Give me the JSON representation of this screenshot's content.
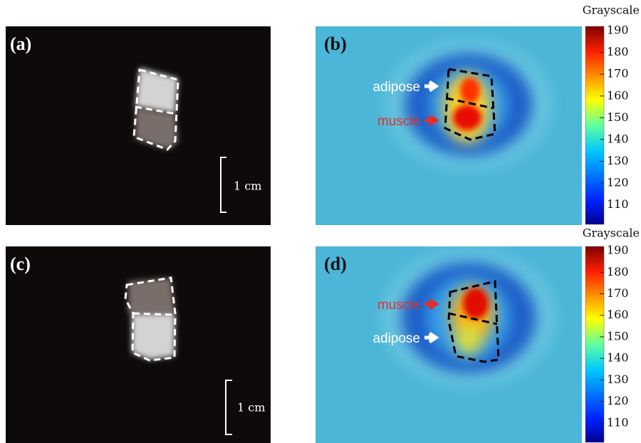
{
  "panels": [
    {
      "label": "(a)",
      "scale_bar": "1 cm"
    },
    {
      "label": "(b)",
      "annotations": [
        "adipose",
        "muscle"
      ],
      "colorbar": {
        "title": "Grayscale",
        "lim": [
          101,
          192
        ],
        "ticks": [
          110,
          120,
          130,
          140,
          150,
          160,
          170,
          180,
          190
        ]
      }
    },
    {
      "label": "(c)",
      "scale_bar": "1 cm"
    },
    {
      "label": "(d)",
      "annotations": [
        "muscle",
        "adipose"
      ],
      "colorbar": {
        "title": "Grayscale",
        "lim": [
          101,
          192
        ],
        "ticks": [
          110,
          120,
          130,
          140,
          150,
          160,
          170,
          180,
          190
        ]
      }
    }
  ]
}
